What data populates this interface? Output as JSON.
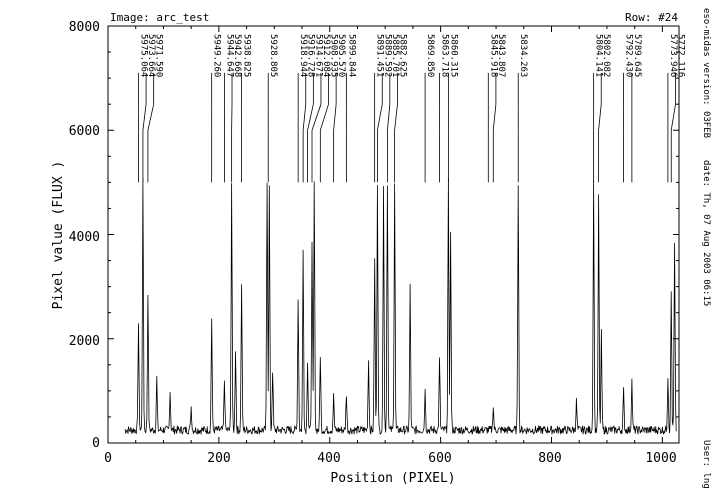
{
  "chart_data": {
    "type": "line",
    "image_label": "Image: arc_test",
    "row_label": "Row: #24",
    "xlabel": "Position (PIXEL)",
    "ylabel": "Pixel value (FLUX )",
    "xlim": [
      0,
      1030
    ],
    "ylim": [
      0,
      8000
    ],
    "x_ticks": [
      "0",
      "200",
      "400",
      "600",
      "800",
      "1000"
    ],
    "y_ticks": [
      "0",
      "2000",
      "4000",
      "6000",
      "8000"
    ],
    "side_info": {
      "version": "eso-midas version: 03FEB",
      "date": "date: Th, 07 Aug 2003 06:15",
      "user": "User: lng"
    },
    "baseline_flux": 250,
    "baseline_range": [
      30,
      1025
    ],
    "peaks": [
      {
        "x": 55,
        "y": 2300
      },
      {
        "x": 63,
        "y": 5000
      },
      {
        "x": 72,
        "y": 2900
      },
      {
        "x": 88,
        "y": 1250
      },
      {
        "x": 112,
        "y": 1000
      },
      {
        "x": 150,
        "y": 700
      },
      {
        "x": 187,
        "y": 2400
      },
      {
        "x": 210,
        "y": 1200
      },
      {
        "x": 223,
        "y": 5000
      },
      {
        "x": 230,
        "y": 1800
      },
      {
        "x": 241,
        "y": 3000
      },
      {
        "x": 287,
        "y": 5000
      },
      {
        "x": 291,
        "y": 4900
      },
      {
        "x": 297,
        "y": 1400
      },
      {
        "x": 343,
        "y": 2800
      },
      {
        "x": 352,
        "y": 3700
      },
      {
        "x": 360,
        "y": 1600
      },
      {
        "x": 368,
        "y": 3800
      },
      {
        "x": 372,
        "y": 5000
      },
      {
        "x": 383,
        "y": 1700
      },
      {
        "x": 407,
        "y": 900
      },
      {
        "x": 430,
        "y": 950
      },
      {
        "x": 470,
        "y": 1600
      },
      {
        "x": 481,
        "y": 3500
      },
      {
        "x": 486,
        "y": 5000
      },
      {
        "x": 497,
        "y": 5000
      },
      {
        "x": 504,
        "y": 5000
      },
      {
        "x": 517,
        "y": 5000
      },
      {
        "x": 545,
        "y": 3000
      },
      {
        "x": 572,
        "y": 1000
      },
      {
        "x": 598,
        "y": 1600
      },
      {
        "x": 614,
        "y": 5000
      },
      {
        "x": 618,
        "y": 4000
      },
      {
        "x": 695,
        "y": 700
      },
      {
        "x": 740,
        "y": 5000
      },
      {
        "x": 845,
        "y": 800
      },
      {
        "x": 876,
        "y": 5000
      },
      {
        "x": 885,
        "y": 4700
      },
      {
        "x": 890,
        "y": 2100
      },
      {
        "x": 930,
        "y": 1000
      },
      {
        "x": 945,
        "y": 1200
      },
      {
        "x": 1010,
        "y": 1300
      },
      {
        "x": 1016,
        "y": 2900
      },
      {
        "x": 1022,
        "y": 3800
      }
    ],
    "line_ids": [
      {
        "label": "5975.064",
        "x": 55
      },
      {
        "label": "5973.664",
        "x": 63
      },
      {
        "label": "5971.590",
        "x": 72
      },
      {
        "label": "5949.260",
        "x": 187
      },
      {
        "label": "5944.647",
        "x": 210
      },
      {
        "label": "5942.668",
        "x": 223
      },
      {
        "label": "5938.825",
        "x": 241
      },
      {
        "label": "5928.805",
        "x": 289
      },
      {
        "label": "5918.944",
        "x": 343
      },
      {
        "label": "5916.728",
        "x": 352
      },
      {
        "label": "5914.671",
        "x": 360
      },
      {
        "label": "5912.084",
        "x": 368
      },
      {
        "label": "5908.935",
        "x": 383
      },
      {
        "label": "5905.570",
        "x": 407
      },
      {
        "label": "5899.844",
        "x": 430
      },
      {
        "label": "5891.451",
        "x": 481
      },
      {
        "label": "5889.592",
        "x": 486
      },
      {
        "label": "5885.701",
        "x": 504
      },
      {
        "label": "5882.625",
        "x": 517
      },
      {
        "label": "5869.850",
        "x": 572
      },
      {
        "label": "5863.718",
        "x": 598
      },
      {
        "label": "5860.315",
        "x": 614
      },
      {
        "label": "5845.918",
        "x": 686
      },
      {
        "label": "5843.807",
        "x": 695
      },
      {
        "label": "5834.263",
        "x": 740
      },
      {
        "label": "5804.141",
        "x": 876
      },
      {
        "label": "5802.082",
        "x": 885
      },
      {
        "label": "5792.430",
        "x": 930
      },
      {
        "label": "5789.645",
        "x": 945
      },
      {
        "label": "5773.946",
        "x": 1010
      },
      {
        "label": "5772.116",
        "x": 1016
      }
    ],
    "id_marker": {
      "top_flux": 6500,
      "bottom_flux": 5000
    }
  }
}
